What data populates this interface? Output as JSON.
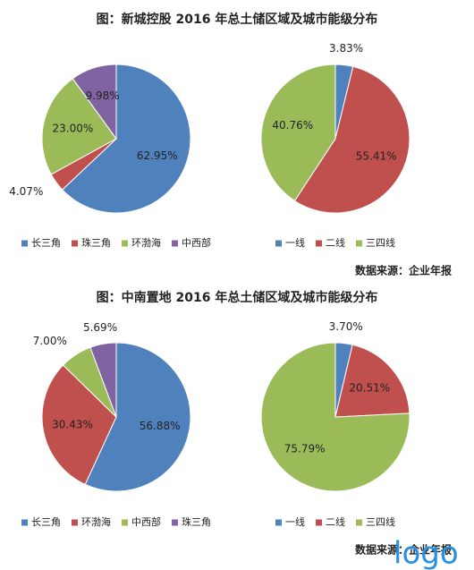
{
  "panels": [
    {
      "title": "图：新城控股 2016 年总土储区域及城市能级分布",
      "source": "数据来源：企业年报"
    },
    {
      "title": "图：中南置地 2016 年总土储区域及城市能级分布",
      "source": "数据来源：企业年报"
    }
  ],
  "chart_data": [
    {
      "type": "pie",
      "categories": [
        "长三角",
        "珠三角",
        "环渤海",
        "中西部"
      ],
      "values": [
        62.95,
        4.07,
        23.0,
        9.98
      ],
      "value_labels": [
        "62.95%",
        "4.07%",
        "23.00%",
        "9.98%"
      ],
      "colors": [
        "#4f81bd",
        "#c0504d",
        "#9bbb59",
        "#8064a2"
      ]
    },
    {
      "type": "pie",
      "categories": [
        "一线",
        "二线",
        "三四线"
      ],
      "values": [
        3.83,
        55.41,
        40.76
      ],
      "value_labels": [
        "3.83%",
        "55.41%",
        "40.76%"
      ],
      "colors": [
        "#4f81bd",
        "#c0504d",
        "#9bbb59"
      ]
    },
    {
      "type": "pie",
      "categories": [
        "长三角",
        "环渤海",
        "中西部",
        "珠三角"
      ],
      "values": [
        56.88,
        30.43,
        7.0,
        5.69
      ],
      "value_labels": [
        "56.88%",
        "30.43%",
        "7.00%",
        "5.69%"
      ],
      "colors": [
        "#4f81bd",
        "#c0504d",
        "#9bbb59",
        "#8064a2"
      ]
    },
    {
      "type": "pie",
      "categories": [
        "一线",
        "二线",
        "三四线"
      ],
      "values": [
        3.7,
        20.51,
        75.79
      ],
      "value_labels": [
        "3.70%",
        "20.51%",
        "75.79%"
      ],
      "colors": [
        "#4f81bd",
        "#c0504d",
        "#9bbb59"
      ]
    }
  ],
  "watermark": "logo"
}
